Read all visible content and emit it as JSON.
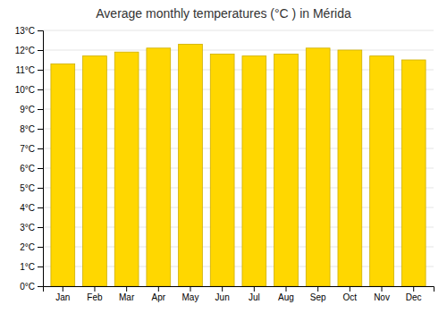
{
  "chart_data": {
    "type": "bar",
    "title": "Average monthly temperatures (°C ) in Mérida",
    "categories": [
      "Jan",
      "Feb",
      "Mar",
      "Apr",
      "May",
      "Jun",
      "Jul",
      "Aug",
      "Sep",
      "Oct",
      "Nov",
      "Dec"
    ],
    "values": [
      11.3,
      11.7,
      11.9,
      12.1,
      12.3,
      11.8,
      11.7,
      11.8,
      12.1,
      12.0,
      11.7,
      11.5
    ],
    "color": "#FFD700",
    "ylim": [
      0,
      13
    ],
    "yticks": [
      {
        "value": 0,
        "label": "0°C"
      },
      {
        "value": 1,
        "label": "1°C"
      },
      {
        "value": 2,
        "label": "2°C"
      },
      {
        "value": 3,
        "label": "3°C"
      },
      {
        "value": 4,
        "label": "4°C"
      },
      {
        "value": 5,
        "label": "5°C"
      },
      {
        "value": 6,
        "label": "6°C"
      },
      {
        "value": 7,
        "label": "7°C"
      },
      {
        "value": 8,
        "label": "8°C"
      },
      {
        "value": 9,
        "label": "9°C"
      },
      {
        "value": 10,
        "label": "10°C"
      },
      {
        "value": 11,
        "label": "11°C"
      },
      {
        "value": 12,
        "label": "12°C"
      },
      {
        "value": 13,
        "label": "13°C"
      }
    ],
    "grid": true
  }
}
